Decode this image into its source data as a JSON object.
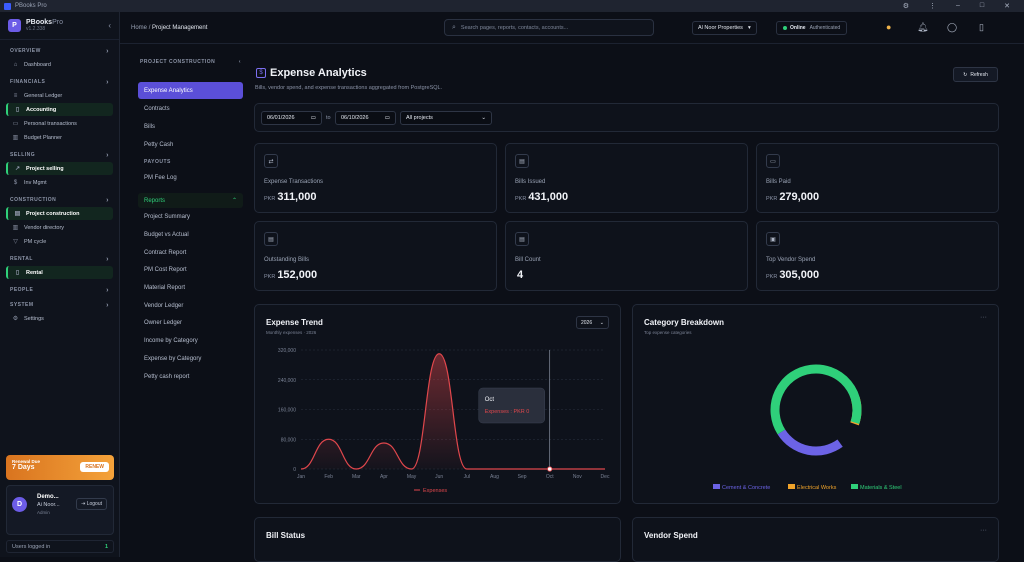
{
  "window": {
    "title": "PBooks Pro"
  },
  "brand": {
    "name": "PBooks",
    "name_suffix": "Pro",
    "version": "v1.2.338",
    "logo_letter": "P"
  },
  "sidebar": {
    "sections": [
      {
        "title": "OVERVIEW",
        "items": [
          {
            "label": "Dashboard",
            "icon": "home-icon",
            "active": false
          }
        ]
      },
      {
        "title": "FINANCIALS",
        "items": [
          {
            "label": "General Ledger",
            "icon": "ledger-icon",
            "active": false
          },
          {
            "label": "Accounting",
            "icon": "accounting-icon",
            "active": true
          },
          {
            "label": "Personal transactions",
            "icon": "wallet-icon",
            "active": false
          },
          {
            "label": "Budget Planner",
            "icon": "chart-icon",
            "active": false
          }
        ]
      },
      {
        "title": "SELLING",
        "items": [
          {
            "label": "Project selling",
            "icon": "trend-icon",
            "active": true
          },
          {
            "label": "Inv Mgmt",
            "icon": "money-icon",
            "active": false
          }
        ]
      },
      {
        "title": "CONSTRUCTION",
        "items": [
          {
            "label": "Project construction",
            "icon": "building-icon",
            "active": true
          },
          {
            "label": "Vendor directory",
            "icon": "book-icon",
            "active": false
          },
          {
            "label": "PM cycle",
            "icon": "filter-icon",
            "active": false
          }
        ]
      },
      {
        "title": "RENTAL",
        "items": [
          {
            "label": "Rental",
            "icon": "rental-icon",
            "active": true
          }
        ]
      },
      {
        "title": "PEOPLE",
        "items": []
      },
      {
        "title": "SYSTEM",
        "items": [
          {
            "label": "Settings",
            "icon": "gear-icon",
            "active": false
          }
        ]
      }
    ],
    "renew": {
      "line1": "Renewal Due",
      "line2": "7 Days",
      "button": "RENEW"
    },
    "user": {
      "avatar": "D",
      "name": "Demo...",
      "company": "Ai Noor...",
      "role": "Admin",
      "logout": "Logout"
    },
    "users_logged": {
      "label": "Users logged in",
      "count": "1"
    }
  },
  "topbar": {
    "breadcrumb": {
      "home": "Home",
      "sep": "/",
      "current": "Project Management"
    },
    "search_placeholder": "Search pages, reports, contacts, accounts...",
    "company": "Al Noor Properties",
    "status": {
      "online": "Online",
      "auth": "Authenticated"
    }
  },
  "subnav": {
    "header": "PROJECT CONSTRUCTION",
    "items": [
      "Expense Analytics",
      "Contracts",
      "Bills",
      "Petty Cash"
    ],
    "payouts_title": "PAYOUTS",
    "payouts": [
      "PM Fee Log"
    ],
    "reports_label": "Reports",
    "reports": [
      "Project Summary",
      "Budget vs Actual",
      "Contract Report",
      "PM Cost Report",
      "Material Report",
      "Vendor Ledger",
      "Owner Ledger",
      "Income by Category",
      "Expense by Category",
      "Petty cash report"
    ]
  },
  "page": {
    "title": "Expense Analytics",
    "subtitle": "Bills, vendor spend, and expense transactions aggregated from PostgreSQL.",
    "refresh": "Refresh",
    "filters": {
      "from": "06/01/2026",
      "to_label": "to",
      "to": "06/10/2026",
      "project": "All projects"
    }
  },
  "kpis": [
    {
      "label": "Expense Transactions",
      "currency": "PKR",
      "value": "311,000",
      "icon": "arrows-icon"
    },
    {
      "label": "Bills Issued",
      "currency": "PKR",
      "value": "431,000",
      "icon": "document-icon"
    },
    {
      "label": "Bills Paid",
      "currency": "PKR",
      "value": "279,000",
      "icon": "paid-icon"
    },
    {
      "label": "Outstanding Bills",
      "currency": "PKR",
      "value": "152,000",
      "icon": "outstanding-icon"
    },
    {
      "label": "Bill Count",
      "currency": "",
      "value": "4",
      "icon": "count-icon"
    },
    {
      "label": "Top Vendor Spend",
      "currency": "PKR",
      "value": "305,000",
      "icon": "vendor-icon"
    }
  ],
  "trend": {
    "title": "Expense Trend",
    "subtitle": "Monthly expenses · 2026",
    "year": "2026",
    "tooltip_month": "Oct",
    "tooltip_value": "Expenses : PKR 0",
    "legend": "Expenses"
  },
  "breakdown": {
    "title": "Category Breakdown",
    "subtitle": "Top expense categories"
  },
  "bottom": {
    "left_title": "Bill Status",
    "right_title": "Vendor Spend"
  },
  "colors": {
    "accent": "#5b4fd8",
    "green": "#2fd07a",
    "red": "#e0474c",
    "orange": "#f0a32a",
    "blue": "#6c63e6"
  },
  "chart_data": [
    {
      "type": "area",
      "title": "Expense Trend",
      "series": [
        {
          "name": "Expenses",
          "values": [
            0,
            80000,
            0,
            70000,
            0,
            310000,
            0,
            0,
            0,
            0,
            0,
            0
          ]
        }
      ],
      "categories": [
        "Jan",
        "Feb",
        "Mar",
        "Apr",
        "May",
        "Jun",
        "Jul",
        "Aug",
        "Sep",
        "Oct",
        "Nov",
        "Dec"
      ],
      "yticks": [
        "0",
        "80,000",
        "160,000",
        "240,000",
        "320,000"
      ],
      "ylim": [
        0,
        320000
      ]
    },
    {
      "type": "pie",
      "title": "Category Breakdown",
      "categories": [
        "Cement & Concrete",
        "Electrical Works",
        "Materials & Steel"
      ],
      "values": [
        26,
        10,
        64
      ],
      "colors": [
        "#6c63e6",
        "#f0a32a",
        "#2fd07a"
      ]
    }
  ]
}
